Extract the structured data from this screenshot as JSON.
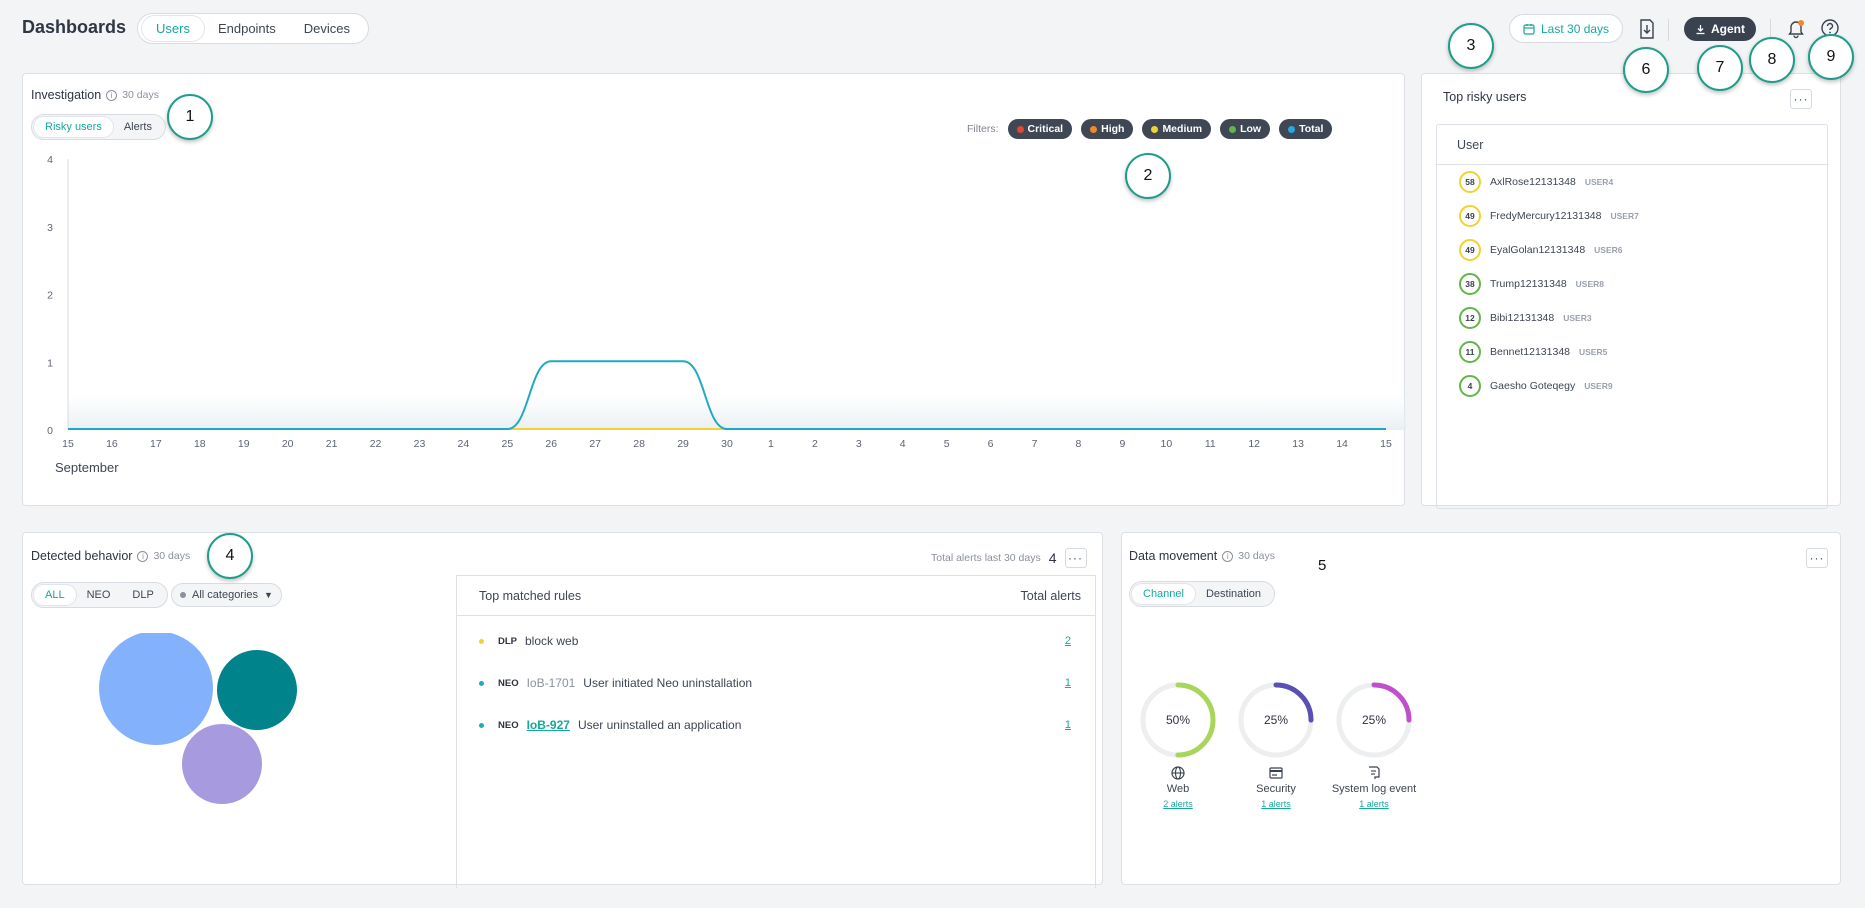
{
  "header": {
    "title": "Dashboards",
    "tabs": [
      "Users",
      "Endpoints",
      "Devices"
    ],
    "date_range": "Last 30 days",
    "agent_label": "Agent"
  },
  "callouts": [
    "1",
    "2",
    "3",
    "4",
    "5",
    "6",
    "7",
    "8",
    "9"
  ],
  "investigation": {
    "title": "Investigation",
    "period": "30 days",
    "toggle": [
      "Risky users",
      "Alerts"
    ],
    "filters_label": "Filters:",
    "filters": [
      {
        "label": "Critical",
        "color": "#e8452c"
      },
      {
        "label": "High",
        "color": "#f0882c"
      },
      {
        "label": "Medium",
        "color": "#f2d230"
      },
      {
        "label": "Low",
        "color": "#63b548"
      },
      {
        "label": "Total",
        "color": "#26a9e0"
      }
    ],
    "month_label": "September"
  },
  "chart_data": {
    "type": "line",
    "title": "",
    "xlabel": "September",
    "ylabel": "",
    "x": [
      "15",
      "16",
      "17",
      "18",
      "19",
      "20",
      "21",
      "22",
      "23",
      "24",
      "25",
      "26",
      "27",
      "28",
      "29",
      "30",
      "1",
      "2",
      "3",
      "4",
      "5",
      "6",
      "7",
      "8",
      "9",
      "10",
      "11",
      "12",
      "13",
      "14",
      "15"
    ],
    "y_ticks": [
      "0",
      "1",
      "2",
      "3",
      "4"
    ],
    "ylim": [
      0,
      4
    ],
    "series": [
      {
        "color": "#1fa9c2",
        "values": [
          0,
          0,
          0,
          0,
          0,
          0,
          0,
          0,
          0,
          0,
          0,
          1,
          1,
          1,
          1,
          0,
          0,
          0,
          0,
          0,
          0,
          0,
          0,
          0,
          0,
          0,
          0,
          0,
          0,
          0,
          0
        ]
      }
    ],
    "grid": false,
    "legend": "none"
  },
  "top_risky_users": {
    "title": "Top risky users",
    "column": "User",
    "rows": [
      {
        "score": "58",
        "name": "AxlRose12131348",
        "id": "USER4",
        "color": "#f2d230"
      },
      {
        "score": "49",
        "name": "FredyMercury12131348",
        "id": "USER7",
        "color": "#f2d230"
      },
      {
        "score": "49",
        "name": "EyalGolan12131348",
        "id": "USER6",
        "color": "#f2d230"
      },
      {
        "score": "38",
        "name": "Trump12131348",
        "id": "USER8",
        "color": "#63b548"
      },
      {
        "score": "12",
        "name": "Bibi12131348",
        "id": "USER3",
        "color": "#63b548"
      },
      {
        "score": "11",
        "name": "Bennet12131348",
        "id": "USER5",
        "color": "#63b548"
      },
      {
        "score": "4",
        "name": "Gaesho Goteqegy",
        "id": "USER9",
        "color": "#63b548"
      }
    ]
  },
  "detected_behavior": {
    "title": "Detected behavior",
    "period": "30 days",
    "toggle": [
      "ALL",
      "NEO",
      "DLP"
    ],
    "category": "All categories",
    "total_label": "Total alerts last 30 days",
    "total_value": "4",
    "bubbles": [
      {
        "color": "#84b1fb"
      },
      {
        "color": "#00838a"
      },
      {
        "color": "#a79adf"
      }
    ],
    "rules_header": "Top matched rules",
    "alerts_header": "Total alerts",
    "rules": [
      {
        "dot": "#f2d230",
        "tag": "DLP",
        "ioa": "",
        "text": "block web",
        "count": "2"
      },
      {
        "dot": "#1fa9c2",
        "tag": "NEO",
        "ioa": "IoB-1701",
        "text": "User initiated Neo uninstallation",
        "count": "1"
      },
      {
        "dot": "#1fa9c2",
        "tag": "NEO",
        "ioa": "IoB-927",
        "text": "User uninstalled an application",
        "count": "1"
      }
    ]
  },
  "data_movement": {
    "title": "Data movement",
    "period": "30 days",
    "toggle": [
      "Channel",
      "Destination"
    ],
    "donuts": [
      {
        "pct": "50%",
        "value": 50,
        "color": "#a8d65b",
        "label": "Web",
        "link": "2 alerts",
        "icon": "globe-icon"
      },
      {
        "pct": "25%",
        "value": 25,
        "color": "#5a4fb3",
        "label": "Security",
        "link": "1 alerts",
        "icon": "security-card-icon"
      },
      {
        "pct": "25%",
        "value": 25,
        "color": "#c04fce",
        "label": "System log event",
        "link": "1 alerts",
        "icon": "log-icon"
      }
    ]
  }
}
